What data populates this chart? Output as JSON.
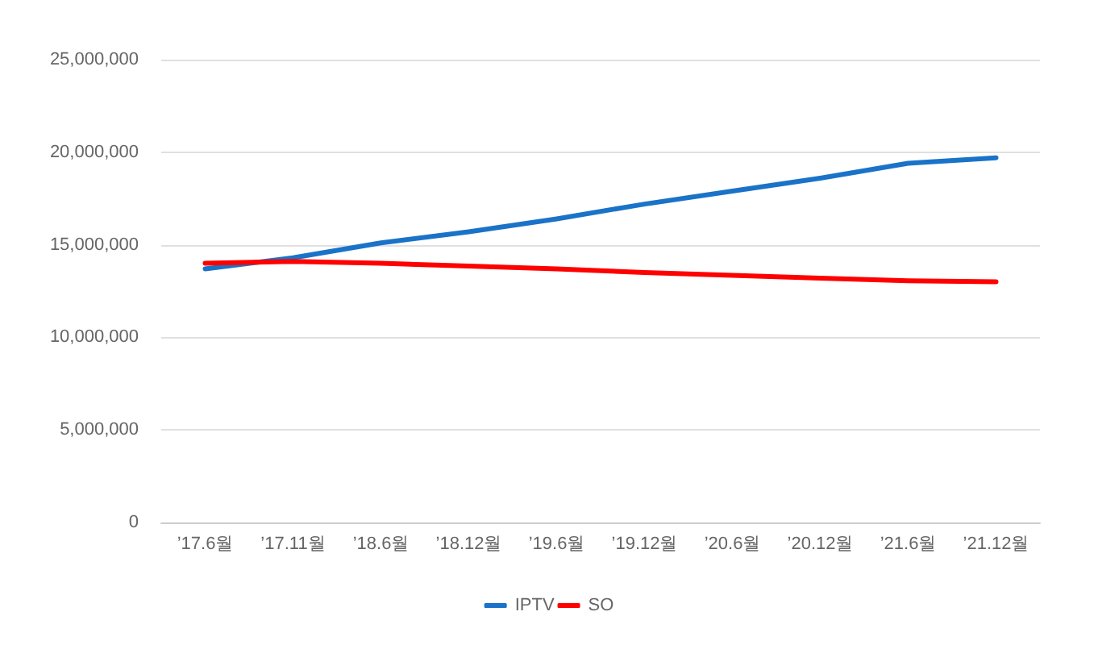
{
  "chart_data": {
    "type": "line",
    "categories": [
      "’17.6월",
      "’17.11월",
      "’18.6월",
      "’18.12월",
      "’19.6월",
      "’19.12월",
      "’20.6월",
      "’20.12월",
      "’21.6월",
      "’21.12월"
    ],
    "series": [
      {
        "name": "IPTV",
        "color": "#1a73c8",
        "values": [
          13700000,
          14300000,
          15100000,
          15700000,
          16400000,
          17200000,
          17900000,
          18600000,
          19400000,
          19700000
        ]
      },
      {
        "name": "SO",
        "color": "#ff0000",
        "values": [
          14000000,
          14100000,
          14000000,
          13850000,
          13700000,
          13500000,
          13350000,
          13200000,
          13050000,
          13000000
        ]
      }
    ],
    "ylim": [
      0,
      25000000
    ],
    "yticks": [
      0,
      {
        "value": 5000000,
        "label": "5,000,000"
      },
      {
        "value": 10000000,
        "label": "10,000,000"
      },
      {
        "value": 15000000,
        "label": "15,000,000"
      },
      {
        "value": 20000000,
        "label": "20,000,000"
      },
      {
        "value": 25000000,
        "label": "25,000,000"
      }
    ],
    "grid": "y",
    "legend": "bottom",
    "marker": "none",
    "line_style": "solid"
  }
}
